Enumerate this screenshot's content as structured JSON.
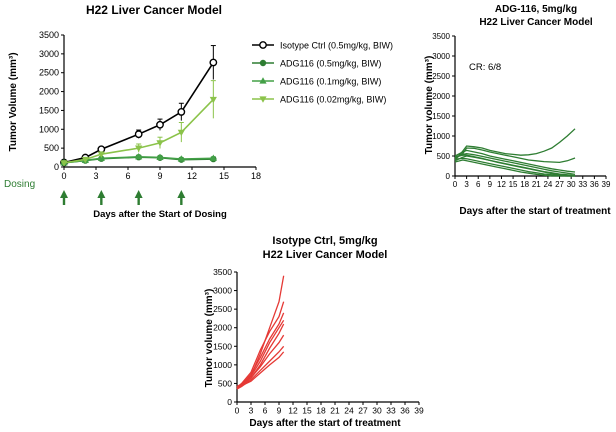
{
  "chart_data": [
    {
      "id": "left",
      "type": "line",
      "title": "H22 Liver Cancer Model",
      "xlabel": "Days after the Start of Dosing",
      "ylabel": "Tumor Volume (mm³)",
      "xlim": [
        0,
        18
      ],
      "ylim": [
        0,
        3500
      ],
      "xticks": [
        "0",
        "3",
        "6",
        "9",
        "12",
        "15",
        "18"
      ],
      "yticks": [
        "0",
        "500",
        "1000",
        "1500",
        "2000",
        "2500",
        "3000",
        "3500"
      ],
      "dosing_label": "Dosing",
      "dosing_days": [
        0,
        3.5,
        7,
        11
      ],
      "x": [
        0,
        2,
        3.5,
        7,
        9,
        11,
        14
      ],
      "series": [
        {
          "name": "Isotype Ctrl (0.5mg/kg, BIW)",
          "color": "#000000",
          "marker": "open-circle",
          "values": [
            120,
            250,
            470,
            870,
            1120,
            1460,
            2770
          ],
          "err": [
            30,
            50,
            60,
            110,
            150,
            230,
            450
          ]
        },
        {
          "name": "ADG116 (0.5mg/kg, BIW)",
          "color": "#2e7d32",
          "marker": "filled-circle",
          "values": [
            110,
            170,
            220,
            260,
            245,
            195,
            210
          ],
          "err": [
            20,
            30,
            30,
            40,
            40,
            30,
            40
          ]
        },
        {
          "name": "ADG116 (0.1mg/kg, BIW)",
          "color": "#43a047",
          "marker": "triangle-up",
          "values": [
            110,
            175,
            230,
            270,
            255,
            210,
            230
          ],
          "err": [
            20,
            30,
            30,
            40,
            40,
            30,
            40
          ]
        },
        {
          "name": "ADG116 (0.02mg/kg, BIW)",
          "color": "#8bc34a",
          "marker": "triangle-down",
          "values": [
            110,
            200,
            340,
            500,
            640,
            920,
            1790
          ],
          "err": [
            20,
            40,
            60,
            110,
            150,
            260,
            500
          ]
        }
      ]
    },
    {
      "id": "right",
      "type": "line",
      "title": "ADG-116, 5mg/kg",
      "subtitle": "H22 Liver Cancer Model",
      "xlabel": "Days after the start of treatment",
      "ylabel": "Tumor volume (mm³)",
      "annotation": "CR: 6/8",
      "xlim": [
        0,
        39
      ],
      "ylim": [
        0,
        3500
      ],
      "xticks": [
        "0",
        "3",
        "6",
        "9",
        "12",
        "15",
        "18",
        "21",
        "24",
        "27",
        "30",
        "33",
        "36",
        "39"
      ],
      "yticks": [
        "0",
        "500",
        "1000",
        "1500",
        "2000",
        "2500",
        "3000",
        "3500"
      ],
      "color": "#2e7d32",
      "x": [
        0,
        2,
        3,
        5,
        7,
        9,
        11,
        13,
        15,
        17,
        19,
        21,
        23,
        25,
        27,
        29,
        31
      ],
      "series": [
        {
          "values": [
            400,
            620,
            750,
            730,
            700,
            640,
            600,
            560,
            540,
            520,
            530,
            560,
            620,
            700,
            840,
            1000,
            1180
          ]
        },
        {
          "values": [
            430,
            560,
            700,
            690,
            650,
            600,
            560,
            520,
            480,
            440,
            400,
            380,
            360,
            350,
            340,
            380,
            450
          ]
        },
        {
          "values": [
            500,
            600,
            640,
            600,
            560,
            500,
            460,
            420,
            380,
            340,
            300,
            260,
            220,
            180,
            150,
            120,
            100
          ]
        },
        {
          "values": [
            450,
            540,
            560,
            530,
            490,
            450,
            410,
            370,
            330,
            290,
            250,
            210,
            170,
            130,
            100,
            70,
            40
          ]
        },
        {
          "values": [
            380,
            470,
            500,
            470,
            430,
            390,
            350,
            310,
            270,
            230,
            190,
            150,
            110,
            80,
            50,
            30,
            10
          ]
        },
        {
          "values": [
            480,
            520,
            520,
            480,
            440,
            390,
            340,
            300,
            260,
            220,
            180,
            140,
            100,
            60,
            30,
            10,
            0
          ]
        },
        {
          "values": [
            420,
            440,
            430,
            390,
            350,
            310,
            270,
            230,
            190,
            150,
            110,
            80,
            50,
            30,
            10,
            0,
            0
          ]
        },
        {
          "values": [
            350,
            400,
            380,
            340,
            300,
            260,
            220,
            180,
            140,
            100,
            70,
            40,
            20,
            0,
            0,
            0,
            0
          ]
        }
      ]
    },
    {
      "id": "bottom",
      "type": "line",
      "title": "Isotype Ctrl, 5mg/kg",
      "subtitle": "H22 Liver  Cancer Model",
      "xlabel": "Days after the start of treatment",
      "ylabel": "Tumor volume (mm³)",
      "xlim": [
        0,
        39
      ],
      "ylim": [
        0,
        3500
      ],
      "xticks": [
        "0",
        "3",
        "6",
        "9",
        "12",
        "15",
        "18",
        "21",
        "24",
        "27",
        "30",
        "33",
        "36",
        "39"
      ],
      "yticks": [
        "0",
        "500",
        "1000",
        "1500",
        "2000",
        "2500",
        "3000",
        "3500"
      ],
      "color": "#e53935",
      "x": [
        0,
        1,
        3,
        5,
        7,
        9,
        10
      ],
      "series": [
        {
          "values": [
            350,
            450,
            700,
            1300,
            2000,
            2700,
            3400
          ]
        },
        {
          "values": [
            400,
            500,
            800,
            1400,
            1900,
            2300,
            2700
          ]
        },
        {
          "values": [
            380,
            460,
            750,
            1200,
            1700,
            2100,
            2400
          ]
        },
        {
          "values": [
            420,
            480,
            700,
            1100,
            1600,
            2000,
            2200
          ]
        },
        {
          "values": [
            360,
            430,
            650,
            1000,
            1450,
            1850,
            2100
          ]
        },
        {
          "values": [
            400,
            470,
            650,
            950,
            1300,
            1600,
            1800
          ]
        },
        {
          "values": [
            350,
            420,
            600,
            850,
            1100,
            1350,
            1500
          ]
        },
        {
          "values": [
            380,
            440,
            560,
            780,
            1000,
            1200,
            1350
          ]
        }
      ]
    }
  ]
}
